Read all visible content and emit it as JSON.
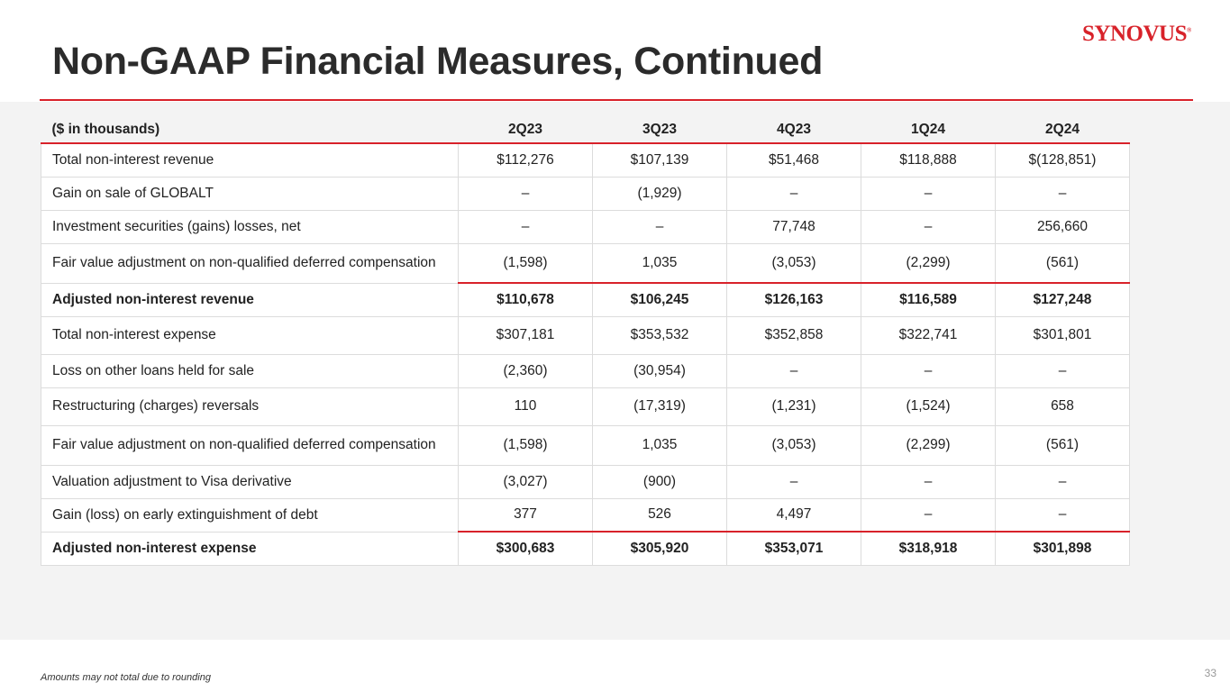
{
  "header": {
    "title": "Non-GAAP Financial Measures, Continued",
    "logo": "SYNOVUS"
  },
  "table": {
    "columns": [
      "($ in thousands)",
      "2Q23",
      "3Q23",
      "4Q23",
      "1Q24",
      "2Q24"
    ],
    "rows": [
      {
        "label": "Total non-interest revenue",
        "values": [
          "$112,276",
          "$107,139",
          "$51,468",
          "$118,888",
          "$(128,851)"
        ]
      },
      {
        "label": "Gain on sale of GLOBALT",
        "values": [
          "–",
          "(1,929)",
          "–",
          "–",
          "–"
        ]
      },
      {
        "label": "Investment securities (gains) losses, net",
        "values": [
          "–",
          "–",
          "77,748",
          "–",
          "256,660"
        ]
      },
      {
        "label": "Fair value adjustment on non-qualified deferred compensation",
        "values": [
          "(1,598)",
          "1,035",
          "(3,053)",
          "(2,299)",
          "(561)"
        ]
      },
      {
        "label": "Adjusted non-interest revenue",
        "values": [
          "$110,678",
          "$106,245",
          "$126,163",
          "$116,589",
          "$127,248"
        ]
      },
      {
        "label": "Total non-interest expense",
        "values": [
          "$307,181",
          "$353,532",
          "$352,858",
          "$322,741",
          "$301,801"
        ]
      },
      {
        "label": "Loss on other loans held for sale",
        "values": [
          "(2,360)",
          "(30,954)",
          "–",
          "–",
          "–"
        ]
      },
      {
        "label": "Restructuring (charges) reversals",
        "values": [
          "110",
          "(17,319)",
          "(1,231)",
          "(1,524)",
          "658"
        ]
      },
      {
        "label": "Fair value adjustment on non-qualified deferred compensation",
        "values": [
          "(1,598)",
          "1,035",
          "(3,053)",
          "(2,299)",
          "(561)"
        ]
      },
      {
        "label": "Valuation adjustment to Visa derivative",
        "values": [
          "(3,027)",
          "(900)",
          "–",
          "–",
          "–"
        ]
      },
      {
        "label": "Gain (loss) on early extinguishment of debt",
        "values": [
          "377",
          "526",
          "4,497",
          "–",
          "–"
        ]
      },
      {
        "label": "Adjusted non-interest expense",
        "values": [
          "$300,683",
          "$305,920",
          "$353,071",
          "$318,918",
          "$301,898"
        ]
      }
    ]
  },
  "footer": {
    "note": "Amounts may not total due to rounding",
    "page": "33"
  }
}
